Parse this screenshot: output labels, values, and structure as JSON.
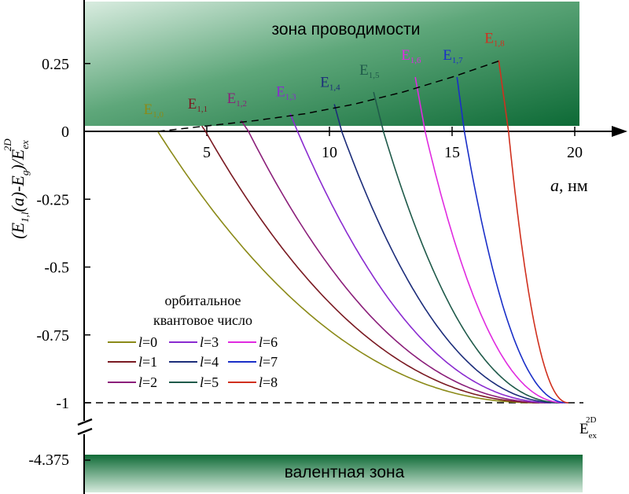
{
  "chart_data": {
    "type": "line",
    "y_title_parts": [
      "(E",
      "1,l",
      "(a)-E",
      "g",
      ")/E",
      "ex",
      "2D"
    ],
    "x_title": "a, нм",
    "x_title_italic": "a",
    "x_title_rest": ", нм",
    "xlim": [
      0,
      21.5
    ],
    "ylim": [
      -1.18,
      0.4
    ],
    "x_ticks": [
      5,
      10,
      15,
      20
    ],
    "x_tick_labels": [
      "5",
      "10",
      "15",
      "20"
    ],
    "y_ticks": [
      0.25,
      0,
      -0.25,
      -0.5,
      -0.75,
      -1
    ],
    "y_tick_labels": [
      "0.25",
      "0",
      "-0.25",
      "-0.5",
      "-0.75",
      "-1"
    ],
    "y_extra_tick_label": "-4.375",
    "conduction_zone_label": "зона проводимости",
    "valence_zone_label": "валентная зона",
    "exciton_label_main": "E",
    "exciton_label_sub": "ex",
    "exciton_label_sup": "2D",
    "exciton_level": -1,
    "legend_title_line1": "орбитальное",
    "legend_title_line2": "квантовое число",
    "legend_prefix": "l",
    "boundary_curve": {
      "x": [
        3.0,
        5.0,
        7.0,
        9.0,
        11.0,
        13.0,
        15.0,
        17.0
      ],
      "y": [
        0.0,
        0.02,
        0.04,
        0.065,
        0.1,
        0.145,
        0.2,
        0.262
      ]
    },
    "series": [
      {
        "name": "l=0",
        "label": "0",
        "color": "#8B8A18",
        "start": 3.0,
        "end_energy": 0.0,
        "zero_x": 3.0,
        "end_x": 18.5
      },
      {
        "name": "l=1",
        "label": "1",
        "color": "#7A1A22",
        "start": 4.8,
        "end_energy": 0.02,
        "zero_x": 4.95,
        "end_x": 18.8
      },
      {
        "name": "l=2",
        "label": "2",
        "color": "#8B1F7A",
        "start": 6.4,
        "end_energy": 0.04,
        "zero_x": 6.7,
        "end_x": 19.0
      },
      {
        "name": "l=3",
        "label": "3",
        "color": "#8A2BD0",
        "start": 8.4,
        "end_energy": 0.065,
        "zero_x": 8.7,
        "end_x": 19.2
      },
      {
        "name": "l=4",
        "label": "4",
        "color": "#1C2D7A",
        "start": 10.2,
        "end_energy": 0.1,
        "zero_x": 10.5,
        "end_x": 19.4
      },
      {
        "name": "l=5",
        "label": "5",
        "color": "#1F5A4A",
        "start": 11.8,
        "end_energy": 0.145,
        "zero_x": 12.2,
        "end_x": 19.5
      },
      {
        "name": "l=6",
        "label": "6",
        "color": "#E02BE0",
        "start": 13.5,
        "end_energy": 0.2,
        "zero_x": 13.9,
        "end_x": 19.6
      },
      {
        "name": "l=7",
        "label": "7",
        "color": "#1A2FC8",
        "start": 15.2,
        "end_energy": 0.2,
        "zero_x": 15.5,
        "end_x": 19.7
      },
      {
        "name": "l=8",
        "label": "8",
        "color": "#D0301E",
        "start": 16.9,
        "end_energy": 0.262,
        "zero_x": 17.3,
        "end_x": 19.75
      }
    ],
    "state_labels": [
      {
        "main": "E",
        "sub": "1,0",
        "color": "#8B8A18",
        "x": 3.0,
        "y": 0.0
      },
      {
        "main": "E",
        "sub": "1,1",
        "color": "#7A1A22",
        "x": 4.8,
        "y": 0.02
      },
      {
        "main": "E",
        "sub": "1,2",
        "color": "#8B1F7A",
        "x": 6.4,
        "y": 0.04
      },
      {
        "main": "E",
        "sub": "1,3",
        "color": "#8A2BD0",
        "x": 8.4,
        "y": 0.065
      },
      {
        "main": "E",
        "sub": "1,4",
        "color": "#1C2D7A",
        "x": 10.2,
        "y": 0.1
      },
      {
        "main": "E",
        "sub": "1,5",
        "color": "#1F5A4A",
        "x": 11.8,
        "y": 0.145
      },
      {
        "main": "E",
        "sub": "1,6",
        "color": "#E02BE0",
        "x": 13.5,
        "y": 0.2
      },
      {
        "main": "E",
        "sub": "1,7",
        "color": "#1A2FC8",
        "x": 15.2,
        "y": 0.2
      },
      {
        "main": "E",
        "sub": "1,8",
        "color": "#D0301E",
        "x": 16.9,
        "y": 0.262
      }
    ],
    "grid": false,
    "legend_placement": "bottom-left"
  }
}
